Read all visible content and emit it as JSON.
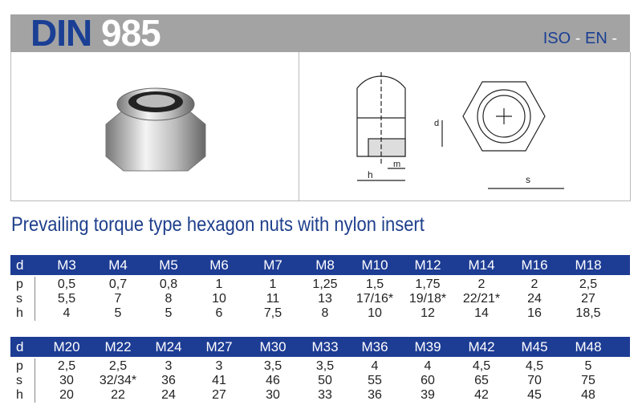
{
  "header": {
    "standard_prefix": "DIN",
    "standard_number": "985",
    "iso_label": "ISO",
    "iso_sep": " - ",
    "en_label": "EN",
    "en_sep": " -"
  },
  "title": "Prevailing torque type hexagon nuts with nylon insert",
  "drawing_labels": {
    "d": "d",
    "m": "m",
    "h": "h",
    "s": "s"
  },
  "colors": {
    "header_gray": "#a3a3a3",
    "brand_blue": "#1d3c94"
  },
  "tables": [
    {
      "d_label": "d",
      "sizes": [
        "M3",
        "M4",
        "M5",
        "M6",
        "M7",
        "M8",
        "M10",
        "M12",
        "M14",
        "M16",
        "M18"
      ],
      "rows": [
        {
          "label": "p",
          "values": [
            "0,5",
            "0,7",
            "0,8",
            "1",
            "1",
            "1,25",
            "1,5",
            "1,75",
            "2",
            "2",
            "2,5"
          ]
        },
        {
          "label": "s",
          "values": [
            "5,5",
            "7",
            "8",
            "10",
            "11",
            "13",
            "17/16*",
            "19/18*",
            "22/21*",
            "24",
            "27"
          ]
        },
        {
          "label": "h",
          "values": [
            "4",
            "5",
            "5",
            "6",
            "7,5",
            "8",
            "10",
            "12",
            "14",
            "16",
            "18,5"
          ]
        }
      ]
    },
    {
      "d_label": "d",
      "sizes": [
        "M20",
        "M22",
        "M24",
        "M27",
        "M30",
        "M33",
        "M36",
        "M39",
        "M42",
        "M45",
        "M48"
      ],
      "rows": [
        {
          "label": "p",
          "values": [
            "2,5",
            "2,5",
            "3",
            "3",
            "3,5",
            "3,5",
            "4",
            "4",
            "4,5",
            "4,5",
            "5"
          ]
        },
        {
          "label": "s",
          "values": [
            "30",
            "32/34*",
            "36",
            "41",
            "46",
            "50",
            "55",
            "60",
            "65",
            "70",
            "75"
          ]
        },
        {
          "label": "h",
          "values": [
            "20",
            "22",
            "24",
            "27",
            "30",
            "33",
            "36",
            "39",
            "42",
            "45",
            "48"
          ]
        }
      ]
    }
  ]
}
